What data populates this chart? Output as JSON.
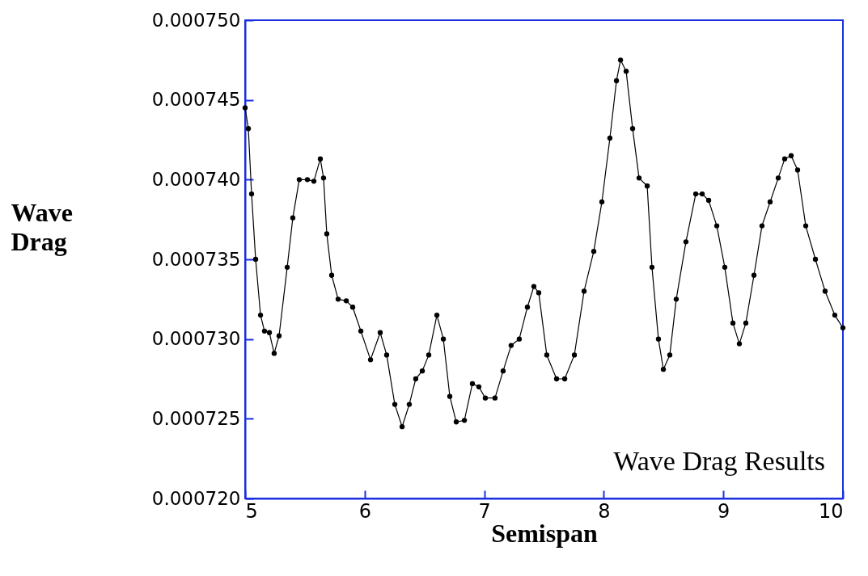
{
  "chart_data": {
    "type": "line",
    "xlabel": "Semispan",
    "ylabel": "Wave Drag",
    "annotations": [
      "Wave Drag Results"
    ],
    "x": [
      5.0,
      5.027,
      5.054,
      5.088,
      5.129,
      5.162,
      5.203,
      5.243,
      5.284,
      5.352,
      5.399,
      5.453,
      5.521,
      5.575,
      5.629,
      5.656,
      5.683,
      5.724,
      5.778,
      5.846,
      5.9,
      5.968,
      6.049,
      6.13,
      6.184,
      6.252,
      6.313,
      6.373,
      6.427,
      6.482,
      6.536,
      6.604,
      6.658,
      6.712,
      6.766,
      6.834,
      6.901,
      6.955,
      7.009,
      7.09,
      7.158,
      7.225,
      7.293,
      7.361,
      7.415,
      7.456,
      7.523,
      7.605,
      7.673,
      7.754,
      7.835,
      7.916,
      7.984,
      8.051,
      8.106,
      8.14,
      8.187,
      8.241,
      8.295,
      8.363,
      8.403,
      8.457,
      8.498,
      8.552,
      8.606,
      8.687,
      8.769,
      8.823,
      8.877,
      8.945,
      9.012,
      9.08,
      9.134,
      9.188,
      9.256,
      9.323,
      9.391,
      9.459,
      9.513,
      9.567,
      9.621,
      9.689,
      9.77,
      9.851,
      9.932,
      10.0
    ],
    "series": [
      {
        "color": "#000000",
        "values": [
          0.0007445,
          0.0007432,
          0.0007391,
          0.000735,
          0.0007315,
          0.0007305,
          0.0007304,
          0.0007291,
          0.0007302,
          0.0007345,
          0.0007376,
          0.00074,
          0.00074,
          0.0007399,
          0.0007413,
          0.0007401,
          0.0007366,
          0.000734,
          0.0007325,
          0.0007324,
          0.000732,
          0.0007305,
          0.0007287,
          0.0007304,
          0.000729,
          0.0007259,
          0.0007245,
          0.0007259,
          0.0007275,
          0.000728,
          0.000729,
          0.0007315,
          0.00073,
          0.0007264,
          0.0007248,
          0.0007249,
          0.0007272,
          0.000727,
          0.0007263,
          0.0007263,
          0.000728,
          0.0007296,
          0.00073,
          0.000732,
          0.0007333,
          0.0007329,
          0.000729,
          0.0007275,
          0.0007275,
          0.000729,
          0.000733,
          0.0007355,
          0.0007386,
          0.0007426,
          0.0007462,
          0.0007475,
          0.0007468,
          0.0007432,
          0.0007401,
          0.0007396,
          0.0007345,
          0.00073,
          0.0007281,
          0.000729,
          0.0007325,
          0.0007361,
          0.0007391,
          0.0007391,
          0.0007387,
          0.0007371,
          0.0007345,
          0.000731,
          0.0007297,
          0.000731,
          0.000734,
          0.0007371,
          0.0007386,
          0.0007401,
          0.0007413,
          0.0007415,
          0.0007406,
          0.0007371,
          0.000735,
          0.000733,
          0.0007315,
          0.0007307
        ]
      }
    ],
    "xlim": [
      5,
      10
    ],
    "xticks": [
      5,
      6,
      7,
      8,
      9,
      10
    ],
    "ylim": [
      0.00072,
      0.00075
    ],
    "yticks": [
      {
        "value": 0.00072,
        "label": "0.000720"
      },
      {
        "value": 0.000725,
        "label": "0.000725"
      },
      {
        "value": 0.00073,
        "label": "0.000730"
      },
      {
        "value": 0.000735,
        "label": "0.000735"
      },
      {
        "value": 0.00074,
        "label": "0.000740"
      },
      {
        "value": 0.000745,
        "label": "0.000745"
      },
      {
        "value": 0.00075,
        "label": "0.000750"
      }
    ],
    "grid": false,
    "marker": "circle",
    "line_style": "solid"
  }
}
